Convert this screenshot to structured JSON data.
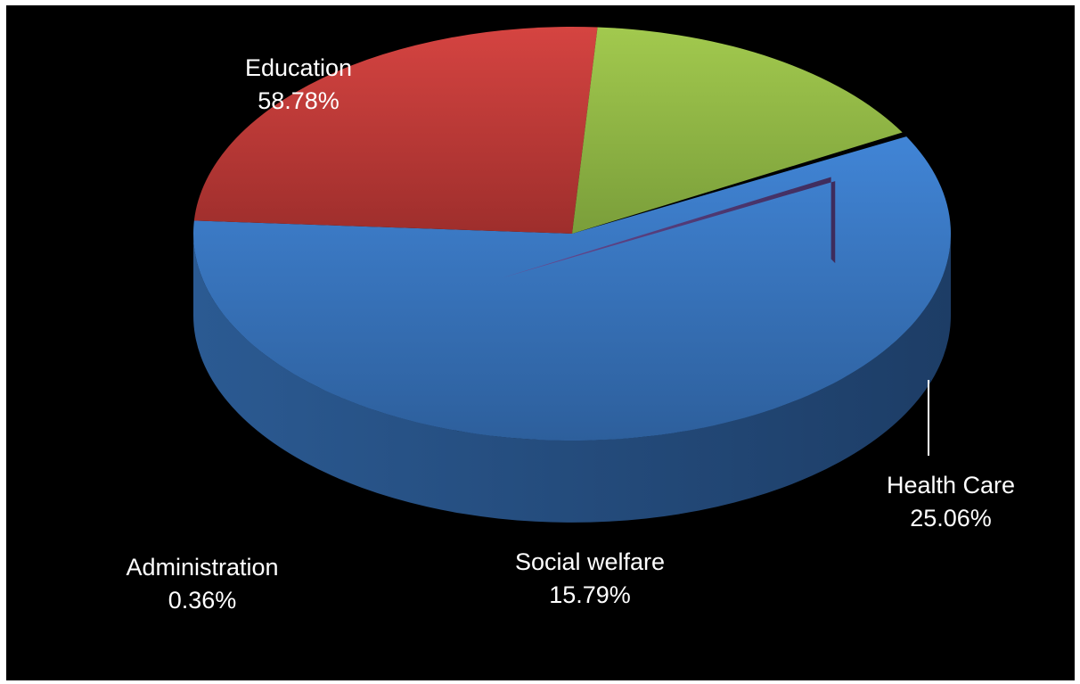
{
  "chart_data": {
    "type": "pie",
    "style": "3d-exploded-slice",
    "title": "",
    "legend": "none",
    "background": "#000000",
    "slices": [
      {
        "label": "Education",
        "value": 58.78,
        "display": "58.78%",
        "color": "#3a78c4"
      },
      {
        "label": "Health Care",
        "value": 25.06,
        "display": "25.06%",
        "color": "#c0393a"
      },
      {
        "label": "Social welfare",
        "value": 15.79,
        "display": "15.79%",
        "color": "#93bb45"
      },
      {
        "label": "Administration",
        "value": 0.36,
        "display": "0.36%",
        "color": "#7a5aa8"
      }
    ]
  }
}
